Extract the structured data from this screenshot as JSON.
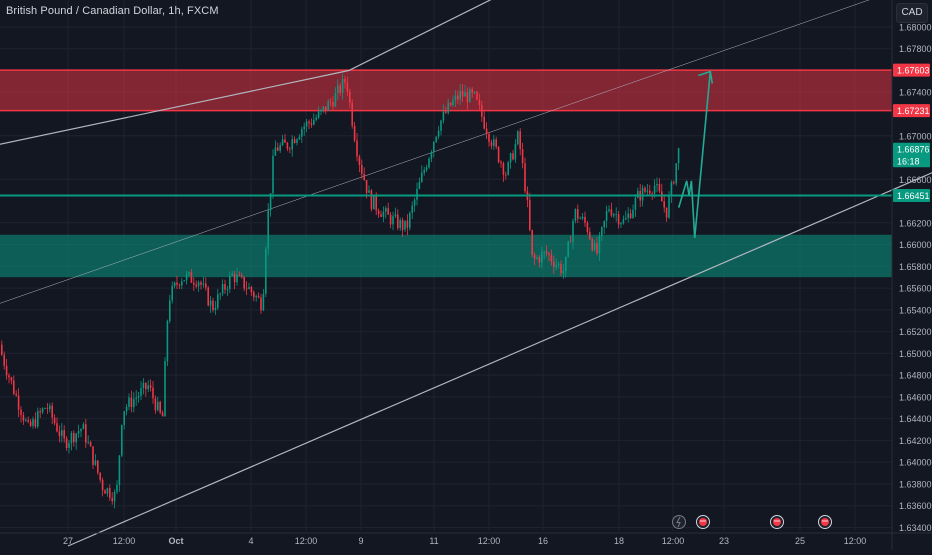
{
  "header": {
    "title": "British Pound / Canadian Dollar, 1h, FXCM",
    "currency": "CAD"
  },
  "chart_data": {
    "type": "candlestick",
    "symbol": "GBPCAD",
    "timeframe": "1h",
    "ylim": [
      1.6334,
      1.6822
    ],
    "y_ticks": [
      "1.68000",
      "1.67800",
      "1.67400",
      "1.67000",
      "1.66600",
      "1.66200",
      "1.66000",
      "1.65800",
      "1.65600",
      "1.65400",
      "1.65200",
      "1.65000",
      "1.64800",
      "1.64600",
      "1.64400",
      "1.64200",
      "1.64000",
      "1.63800",
      "1.63600",
      "1.63400"
    ],
    "x_ticks": [
      "27",
      "12:00",
      "Oct",
      "4",
      "12:00",
      "9",
      "11",
      "12:00",
      "16",
      "18",
      "12:00",
      "23",
      "25",
      "12:00"
    ],
    "x_tick_dates": [
      "2021-09-27",
      "2021-09-27 12:00",
      "2021-10-01",
      "2021-10-04",
      "2021-10-04 12:00",
      "2021-10-09",
      "2021-10-11",
      "2021-10-11 12:00",
      "2021-10-16",
      "2021-10-18",
      "2021-10-18 12:00",
      "2021-10-23",
      "2021-10-25",
      "2021-10-25 12:00"
    ],
    "price_labels": [
      {
        "label": "1.67603",
        "value": 1.67603,
        "color": "#f23645"
      },
      {
        "label": "1.67231",
        "value": 1.67231,
        "color": "#f23645"
      },
      {
        "label": "1.66876",
        "value": 1.66876,
        "color": "#089981"
      },
      {
        "label": "16:18",
        "value": 1.6677,
        "color": "#089981"
      },
      {
        "label": "1.66451",
        "value": 1.66451,
        "color": "#089981"
      }
    ],
    "zones": [
      {
        "name": "resistance",
        "from": 1.67231,
        "to": 1.67603,
        "color": "#f23645"
      },
      {
        "name": "support",
        "from": 1.657,
        "to": 1.6609,
        "color": "#089981"
      }
    ],
    "horizontal_lines": [
      {
        "value": 1.66451,
        "color": "#089981"
      }
    ],
    "channel": {
      "lower": [
        [
          "2021-09-27",
          1.6323
        ],
        [
          "2021-10-27",
          1.6701
        ]
      ],
      "upper": [
        [
          "2021-09-24",
          1.664
        ],
        [
          "2021-10-08",
          1.676
        ],
        [
          "2021-10-14",
          1.6838
        ]
      ],
      "mid": [
        [
          "2021-09-24",
          1.646
        ],
        [
          "2021-10-26",
          1.6838
        ]
      ]
    },
    "projection": [
      [
        "2021-10-19",
        1.6634
      ],
      [
        "2021-10-19 17:00",
        1.66585
      ],
      [
        "2021-10-19 22:00",
        1.6645
      ],
      [
        "2021-10-20 03:00",
        1.66585
      ],
      [
        "2021-10-20 10:00",
        1.6606
      ],
      [
        "2021-10-21 19:00",
        1.6759
      ]
    ],
    "events": [
      "lightning-icon",
      "flag-icon",
      "flag-icon",
      "flag-icon"
    ],
    "last_price": 1.66876
  },
  "colors": {
    "background": "#131722",
    "grid": "#1f2330",
    "up": "#089981",
    "down": "#f23645",
    "channel": "#b2b5be",
    "projection": "#22ab94"
  }
}
